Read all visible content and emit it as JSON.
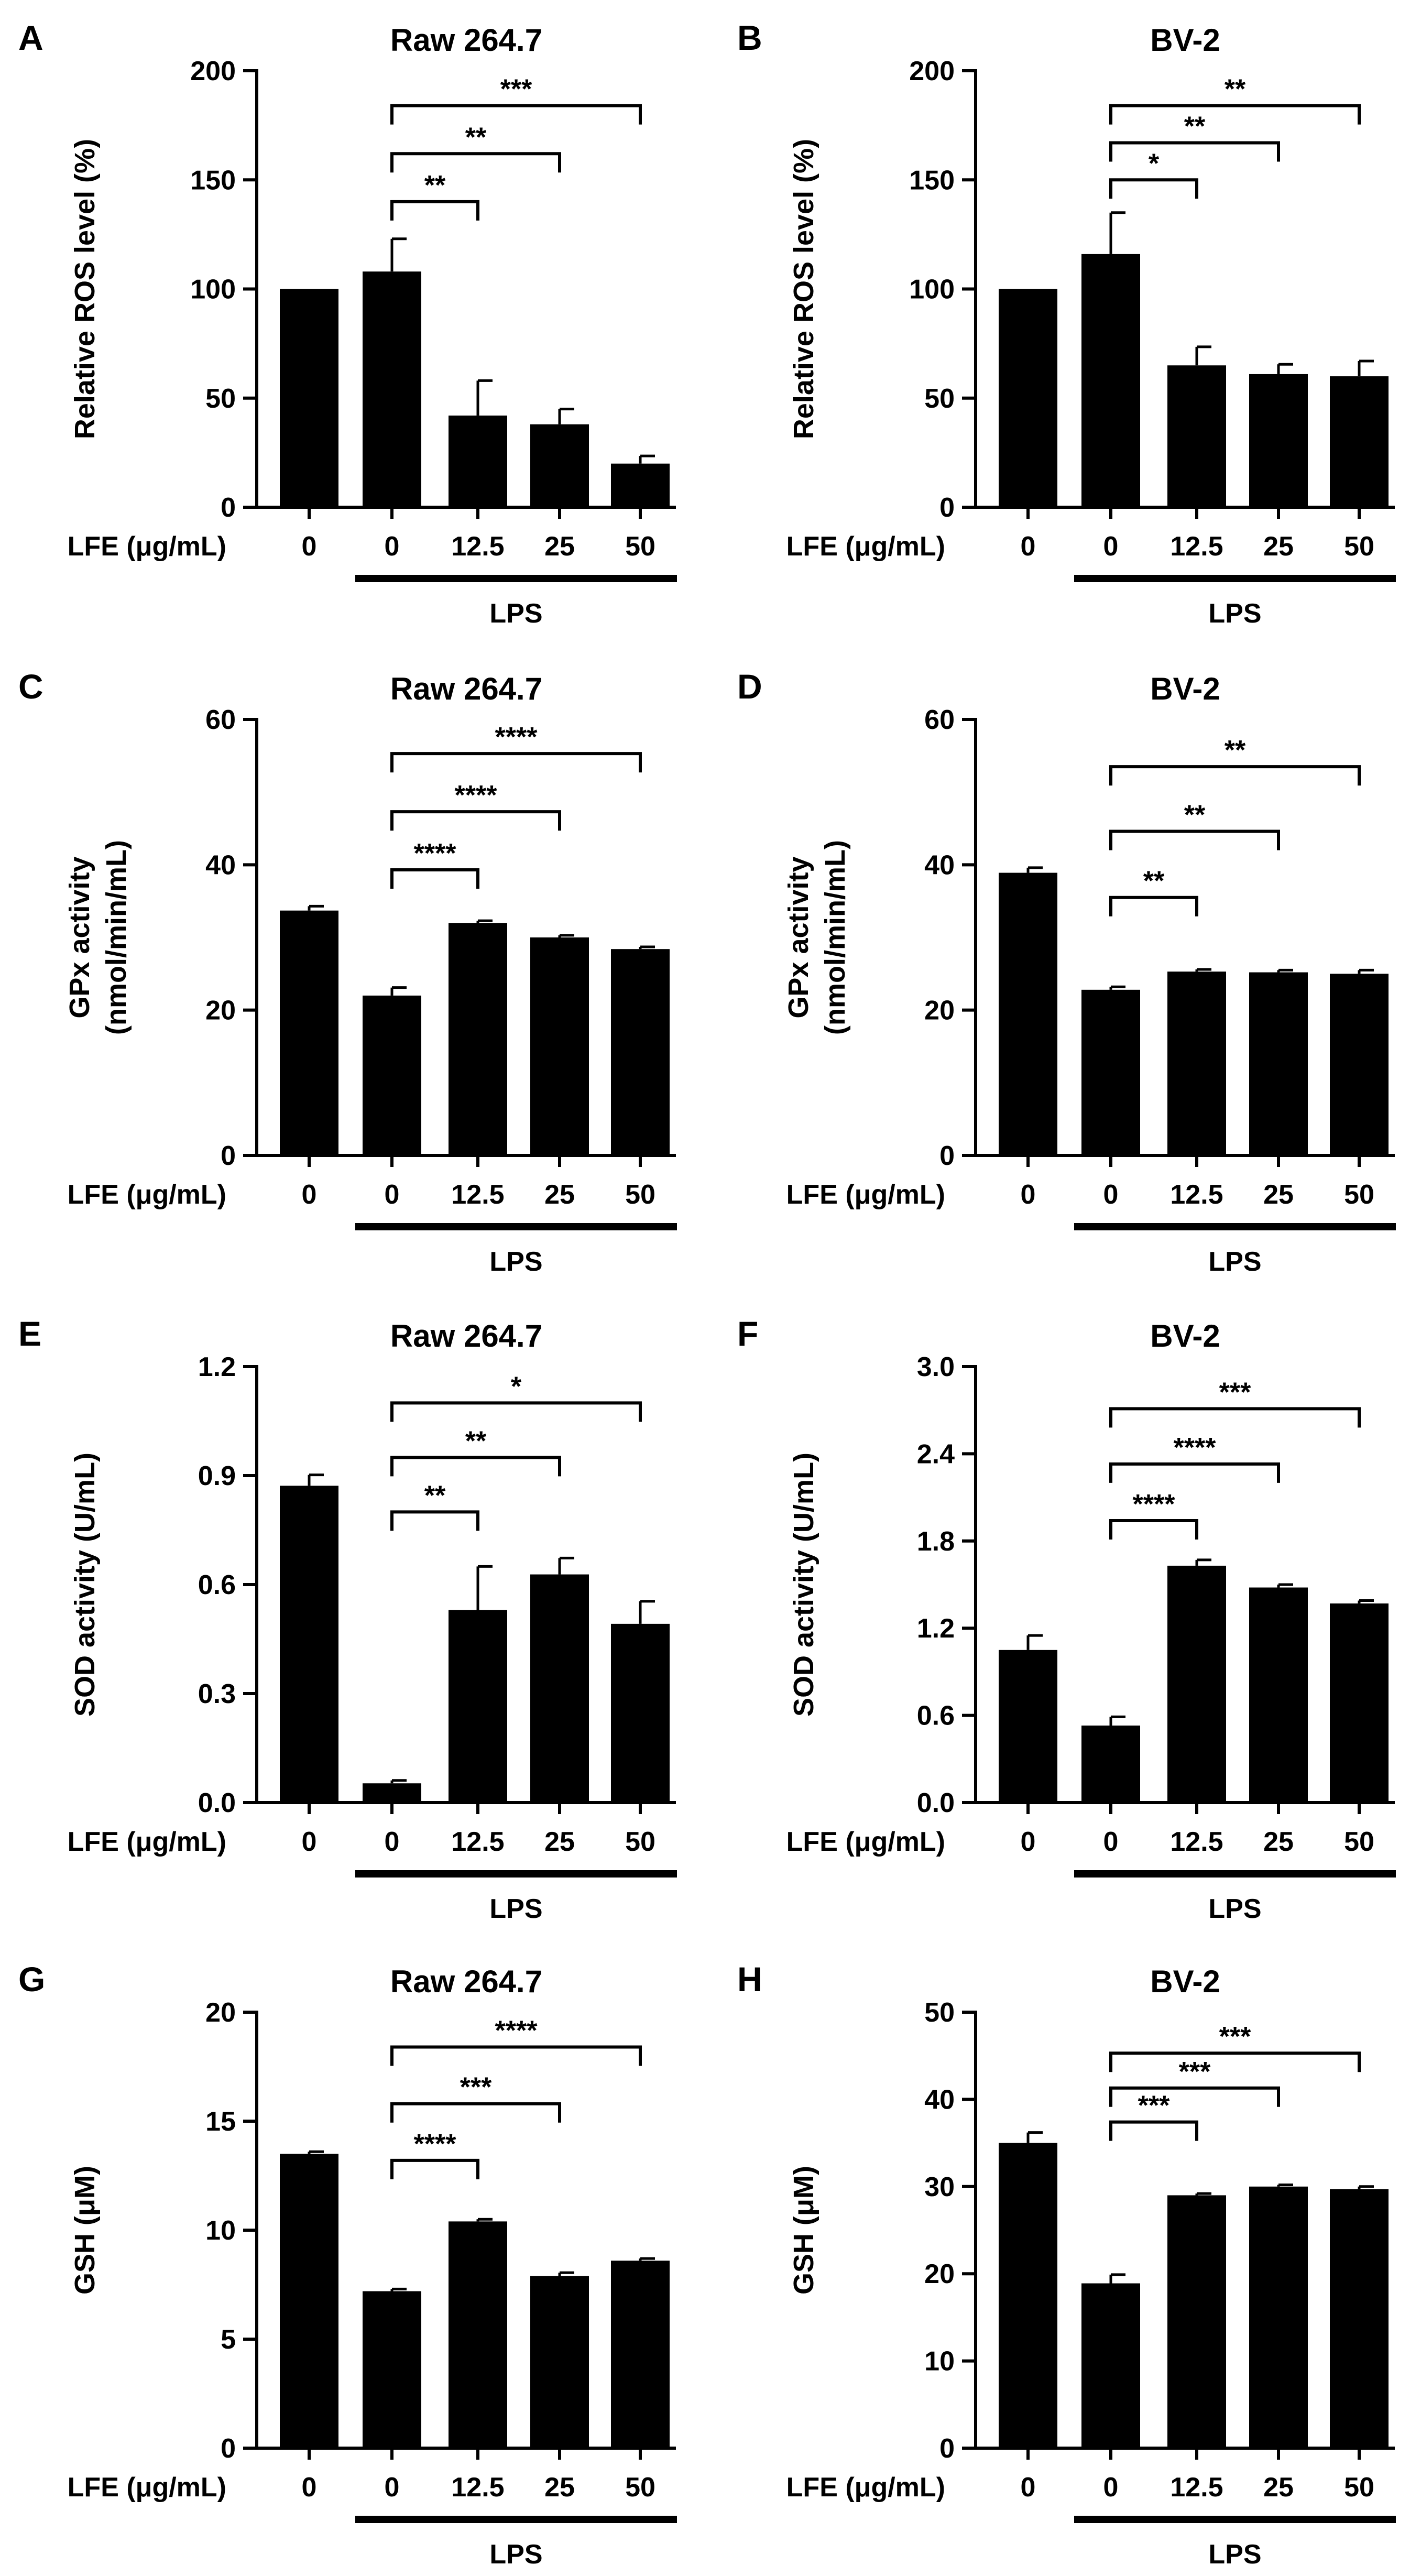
{
  "figure": {
    "x_axis_name": "LFE (μg/mL)",
    "group_label": "LPS"
  },
  "chart_data": [
    {
      "type": "bar",
      "panel": "A",
      "title": "Raw 264.7",
      "ylabel": [
        "Relative ROS level (%)"
      ],
      "categories": [
        "0",
        "0",
        "12.5",
        "25",
        "50"
      ],
      "values": [
        100,
        108,
        42,
        38,
        20
      ],
      "errors": [
        0,
        15,
        16,
        7,
        3.5
      ],
      "ylim": [
        0,
        200
      ],
      "yticks": [
        0,
        50,
        100,
        150,
        200
      ],
      "ytick_labels": [
        "0",
        "50",
        "100",
        "150",
        "200"
      ],
      "comparisons": [
        {
          "from": 1,
          "to": 2,
          "label": "**",
          "y": 140
        },
        {
          "from": 1,
          "to": 3,
          "label": "**",
          "y": 162
        },
        {
          "from": 1,
          "to": 4,
          "label": "***",
          "y": 184
        }
      ]
    },
    {
      "type": "bar",
      "panel": "B",
      "title": "BV-2",
      "ylabel": [
        "Relative ROS level (%)"
      ],
      "categories": [
        "0",
        "0",
        "12.5",
        "25",
        "50"
      ],
      "values": [
        100,
        116,
        65,
        61,
        60
      ],
      "errors": [
        0,
        19,
        8.5,
        4.5,
        7
      ],
      "ylim": [
        0,
        200
      ],
      "yticks": [
        0,
        50,
        100,
        150,
        200
      ],
      "ytick_labels": [
        "0",
        "50",
        "100",
        "150",
        "200"
      ],
      "comparisons": [
        {
          "from": 1,
          "to": 2,
          "label": "*",
          "y": 150
        },
        {
          "from": 1,
          "to": 3,
          "label": "**",
          "y": 167
        },
        {
          "from": 1,
          "to": 4,
          "label": "**",
          "y": 184
        }
      ]
    },
    {
      "type": "bar",
      "panel": "C",
      "title": "Raw 264.7",
      "ylabel": [
        "GPx activity",
        "(nmol/min/mL)"
      ],
      "categories": [
        "0",
        "0",
        "12.5",
        "25",
        "50"
      ],
      "values": [
        33.7,
        22,
        32,
        30,
        28.4
      ],
      "errors": [
        0.6,
        1.1,
        0.3,
        0.3,
        0.3
      ],
      "ylim": [
        0,
        60
      ],
      "yticks": [
        0,
        20,
        40,
        60
      ],
      "ytick_labels": [
        "0",
        "20",
        "40",
        "60"
      ],
      "comparisons": [
        {
          "from": 1,
          "to": 2,
          "label": "****",
          "y": 39.3
        },
        {
          "from": 1,
          "to": 3,
          "label": "****",
          "y": 47.3
        },
        {
          "from": 1,
          "to": 4,
          "label": "****",
          "y": 55.3
        }
      ]
    },
    {
      "type": "bar",
      "panel": "D",
      "title": "BV-2",
      "ylabel": [
        "GPx activity",
        "(nmol/min/mL)"
      ],
      "categories": [
        "0",
        "0",
        "12.5",
        "25",
        "50"
      ],
      "values": [
        38.9,
        22.8,
        25.3,
        25.2,
        25
      ],
      "errors": [
        0.7,
        0.4,
        0.3,
        0.3,
        0.5
      ],
      "ylim": [
        0,
        60
      ],
      "yticks": [
        0,
        20,
        40,
        60
      ],
      "ytick_labels": [
        "0",
        "20",
        "40",
        "60"
      ],
      "comparisons": [
        {
          "from": 1,
          "to": 2,
          "label": "**",
          "y": 35.5
        },
        {
          "from": 1,
          "to": 3,
          "label": "**",
          "y": 44.6
        },
        {
          "from": 1,
          "to": 4,
          "label": "**",
          "y": 53.5
        }
      ]
    },
    {
      "type": "bar",
      "panel": "E",
      "title": "Raw 264.7",
      "ylabel": [
        "SOD activity (U/mL)"
      ],
      "categories": [
        "0",
        "0",
        "12.5",
        "25",
        "50"
      ],
      "values": [
        0.872,
        0.053,
        0.53,
        0.628,
        0.492
      ],
      "errors": [
        0.03,
        0.008,
        0.12,
        0.045,
        0.062
      ],
      "ylim": [
        0,
        1.2
      ],
      "yticks": [
        0,
        0.3,
        0.6,
        0.9,
        1.2
      ],
      "ytick_labels": [
        "0.0",
        "0.3",
        "0.6",
        "0.9",
        "1.2"
      ],
      "comparisons": [
        {
          "from": 1,
          "to": 2,
          "label": "**",
          "y": 0.8
        },
        {
          "from": 1,
          "to": 3,
          "label": "**",
          "y": 0.95
        },
        {
          "from": 1,
          "to": 4,
          "label": "*",
          "y": 1.1
        }
      ]
    },
    {
      "type": "bar",
      "panel": "F",
      "title": "BV-2",
      "ylabel": [
        "SOD activity (U/mL)"
      ],
      "categories": [
        "0",
        "0",
        "12.5",
        "25",
        "50"
      ],
      "values": [
        1.05,
        0.53,
        1.63,
        1.48,
        1.37
      ],
      "errors": [
        0.1,
        0.06,
        0.04,
        0.02,
        0.02
      ],
      "ylim": [
        0,
        3.0
      ],
      "yticks": [
        0,
        0.6,
        1.2,
        1.8,
        2.4,
        3.0
      ],
      "ytick_labels": [
        "0.0",
        "0.6",
        "1.2",
        "1.8",
        "2.4",
        "3.0"
      ],
      "comparisons": [
        {
          "from": 1,
          "to": 2,
          "label": "****",
          "y": 1.94
        },
        {
          "from": 1,
          "to": 3,
          "label": "****",
          "y": 2.33
        },
        {
          "from": 1,
          "to": 4,
          "label": "***",
          "y": 2.71
        }
      ]
    },
    {
      "type": "bar",
      "panel": "G",
      "title": "Raw 264.7",
      "ylabel": [
        "GSH (μM)"
      ],
      "categories": [
        "0",
        "0",
        "12.5",
        "25",
        "50"
      ],
      "values": [
        13.5,
        7.2,
        10.4,
        7.9,
        8.6
      ],
      "errors": [
        0.1,
        0.1,
        0.1,
        0.15,
        0.1
      ],
      "ylim": [
        0,
        20
      ],
      "yticks": [
        0,
        5,
        10,
        15,
        20
      ],
      "ytick_labels": [
        "0",
        "5",
        "10",
        "15",
        "20"
      ],
      "comparisons": [
        {
          "from": 1,
          "to": 2,
          "label": "****",
          "y": 13.2
        },
        {
          "from": 1,
          "to": 3,
          "label": "***",
          "y": 15.8
        },
        {
          "from": 1,
          "to": 4,
          "label": "****",
          "y": 18.4
        }
      ]
    },
    {
      "type": "bar",
      "panel": "H",
      "title": "BV-2",
      "ylabel": [
        "GSH (μM)"
      ],
      "categories": [
        "0",
        "0",
        "12.5",
        "25",
        "50"
      ],
      "values": [
        35,
        18.9,
        29,
        30,
        29.7
      ],
      "errors": [
        1.2,
        1.0,
        0.2,
        0.2,
        0.3
      ],
      "ylim": [
        0,
        50
      ],
      "yticks": [
        0,
        10,
        20,
        30,
        40,
        50
      ],
      "ytick_labels": [
        "0",
        "10",
        "20",
        "30",
        "40",
        "50"
      ],
      "comparisons": [
        {
          "from": 1,
          "to": 2,
          "label": "***",
          "y": 37.4
        },
        {
          "from": 1,
          "to": 3,
          "label": "***",
          "y": 41.3
        },
        {
          "from": 1,
          "to": 4,
          "label": "***",
          "y": 45.3
        }
      ]
    }
  ]
}
